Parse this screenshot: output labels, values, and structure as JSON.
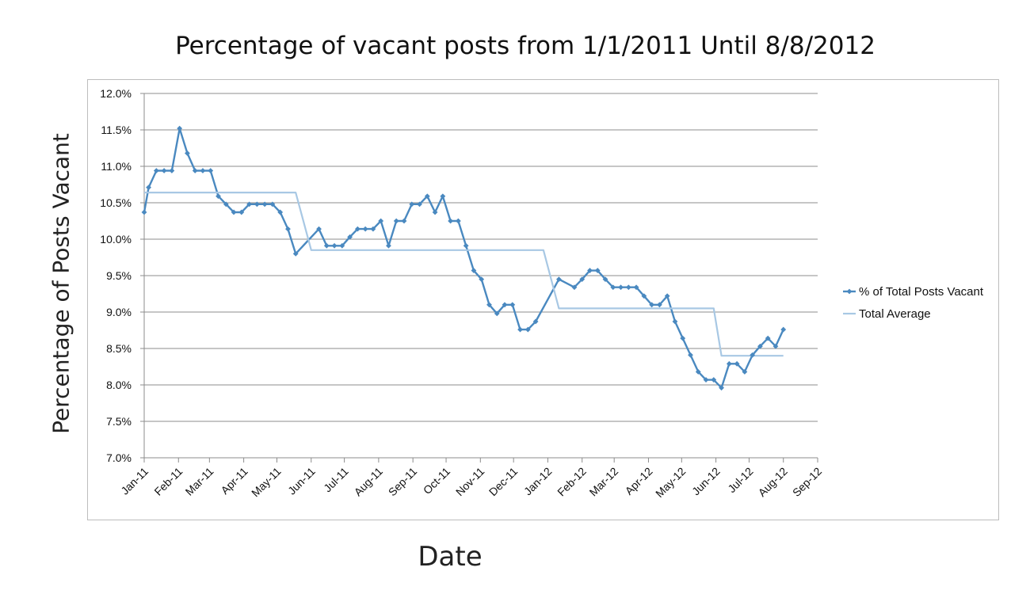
{
  "chart_data": {
    "type": "line",
    "title": "Percentage of vacant posts from 1/1/2011 Until 8/8/2012",
    "xlabel": "Date",
    "ylabel": "Percentage of Posts Vacant",
    "y_ticks": [
      "7.0%",
      "7.5%",
      "8.0%",
      "8.5%",
      "9.0%",
      "9.5%",
      "10.0%",
      "10.5%",
      "11.0%",
      "11.5%",
      "12.0%"
    ],
    "ylim": [
      7.0,
      12.0
    ],
    "x_ticks": [
      "Jan-11",
      "Feb-11",
      "Mar-11",
      "Apr-11",
      "May-11",
      "Jun-11",
      "Jul-11",
      "Aug-11",
      "Sep-11",
      "Oct-11",
      "Nov-11",
      "Dec-11",
      "Jan-12",
      "Feb-12",
      "Mar-12",
      "Apr-12",
      "May-12",
      "Jun-12",
      "Jul-12",
      "Aug-12",
      "Sep-12"
    ],
    "xlim": [
      "2011-01-01",
      "2012-09-01"
    ],
    "grid": "horizontal",
    "legend_position": "right",
    "series": [
      {
        "name": "% of Total Posts Vacant",
        "color": "#4a89c0",
        "marker": "diamond",
        "points": [
          [
            "2011-01-01",
            10.37
          ],
          [
            "2011-01-05",
            10.71
          ],
          [
            "2011-01-12",
            10.94
          ],
          [
            "2011-01-19",
            10.94
          ],
          [
            "2011-01-26",
            10.94
          ],
          [
            "2011-02-02",
            11.52
          ],
          [
            "2011-02-09",
            11.18
          ],
          [
            "2011-02-16",
            10.94
          ],
          [
            "2011-02-23",
            10.94
          ],
          [
            "2011-03-02",
            10.94
          ],
          [
            "2011-03-09",
            10.59
          ],
          [
            "2011-03-16",
            10.48
          ],
          [
            "2011-03-23",
            10.37
          ],
          [
            "2011-03-30",
            10.37
          ],
          [
            "2011-04-06",
            10.48
          ],
          [
            "2011-04-13",
            10.48
          ],
          [
            "2011-04-20",
            10.48
          ],
          [
            "2011-04-27",
            10.48
          ],
          [
            "2011-05-04",
            10.37
          ],
          [
            "2011-05-11",
            10.14
          ],
          [
            "2011-05-18",
            9.8
          ],
          [
            "2011-06-08",
            10.14
          ],
          [
            "2011-06-15",
            9.91
          ],
          [
            "2011-06-22",
            9.91
          ],
          [
            "2011-06-29",
            9.91
          ],
          [
            "2011-07-06",
            10.03
          ],
          [
            "2011-07-13",
            10.14
          ],
          [
            "2011-07-20",
            10.14
          ],
          [
            "2011-07-27",
            10.14
          ],
          [
            "2011-08-03",
            10.25
          ],
          [
            "2011-08-10",
            9.91
          ],
          [
            "2011-08-17",
            10.25
          ],
          [
            "2011-08-24",
            10.25
          ],
          [
            "2011-08-31",
            10.48
          ],
          [
            "2011-09-07",
            10.48
          ],
          [
            "2011-09-14",
            10.59
          ],
          [
            "2011-09-21",
            10.37
          ],
          [
            "2011-09-28",
            10.59
          ],
          [
            "2011-10-05",
            10.25
          ],
          [
            "2011-10-12",
            10.25
          ],
          [
            "2011-10-19",
            9.91
          ],
          [
            "2011-10-26",
            9.57
          ],
          [
            "2011-11-02",
            9.45
          ],
          [
            "2011-11-09",
            9.1
          ],
          [
            "2011-11-16",
            8.98
          ],
          [
            "2011-11-23",
            9.1
          ],
          [
            "2011-11-30",
            9.1
          ],
          [
            "2011-12-07",
            8.76
          ],
          [
            "2011-12-14",
            8.76
          ],
          [
            "2011-12-21",
            8.87
          ],
          [
            "2012-01-11",
            9.45
          ],
          [
            "2012-01-25",
            9.34
          ],
          [
            "2012-02-01",
            9.45
          ],
          [
            "2012-02-08",
            9.57
          ],
          [
            "2012-02-15",
            9.57
          ],
          [
            "2012-02-22",
            9.45
          ],
          [
            "2012-02-29",
            9.34
          ],
          [
            "2012-03-07",
            9.34
          ],
          [
            "2012-03-14",
            9.34
          ],
          [
            "2012-03-21",
            9.34
          ],
          [
            "2012-03-28",
            9.22
          ],
          [
            "2012-04-04",
            9.1
          ],
          [
            "2012-04-11",
            9.1
          ],
          [
            "2012-04-18",
            9.22
          ],
          [
            "2012-04-25",
            8.87
          ],
          [
            "2012-05-02",
            8.64
          ],
          [
            "2012-05-09",
            8.41
          ],
          [
            "2012-05-16",
            8.18
          ],
          [
            "2012-05-23",
            8.07
          ],
          [
            "2012-05-30",
            8.07
          ],
          [
            "2012-06-06",
            7.96
          ],
          [
            "2012-06-13",
            8.29
          ],
          [
            "2012-06-20",
            8.29
          ],
          [
            "2012-06-27",
            8.18
          ],
          [
            "2012-07-04",
            8.41
          ],
          [
            "2012-07-11",
            8.53
          ],
          [
            "2012-07-18",
            8.64
          ],
          [
            "2012-07-25",
            8.53
          ],
          [
            "2012-08-01",
            8.76
          ]
        ]
      },
      {
        "name": "Total Average",
        "color": "#a8c8e4",
        "marker": "none",
        "points": [
          [
            "2011-01-01",
            10.64
          ],
          [
            "2011-05-18",
            10.64
          ],
          [
            "2011-06-01",
            9.85
          ],
          [
            "2011-12-28",
            9.85
          ],
          [
            "2012-01-11",
            9.05
          ],
          [
            "2012-05-30",
            9.05
          ],
          [
            "2012-06-06",
            8.4
          ],
          [
            "2012-08-01",
            8.4
          ]
        ]
      }
    ]
  }
}
